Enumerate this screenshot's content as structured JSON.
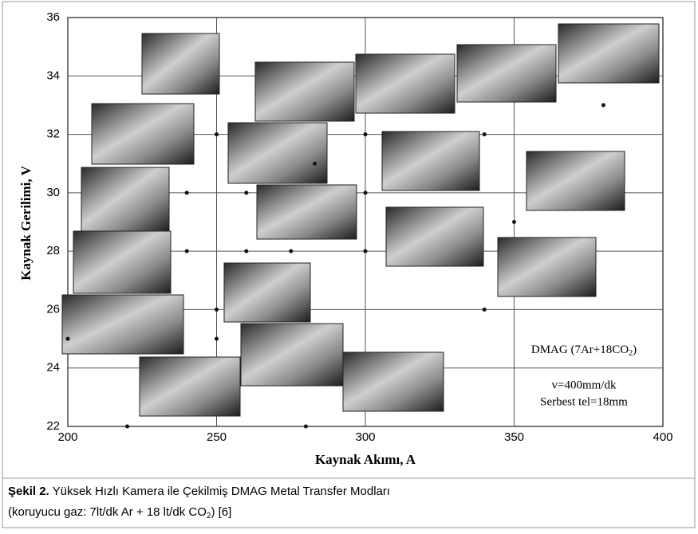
{
  "chart_data": {
    "type": "scatter",
    "xlabel": "Kaynak Akımı, A",
    "ylabel": "Kaynak Gerilimi, V",
    "xlim": [
      200,
      400
    ],
    "ylim": [
      22,
      36
    ],
    "xticks": [
      200,
      250,
      300,
      350,
      400
    ],
    "yticks": [
      22,
      24,
      26,
      28,
      30,
      32,
      34,
      36
    ],
    "grid": true,
    "series": [
      {
        "color": "#111111",
        "x": [
          250,
          240,
          240,
          250,
          200,
          250,
          220,
          260,
          260,
          283,
          275,
          300,
          300,
          300,
          280,
          340,
          350,
          340,
          380
        ],
        "values": [
          32,
          30,
          28,
          26,
          25,
          25,
          22,
          30,
          28,
          31,
          28,
          32,
          30,
          28,
          22,
          32,
          29,
          26,
          33
        ]
      }
    ],
    "annotations": {
      "legend_a": "DMAG (7Ar+18CO",
      "legend_sub": "2",
      "legend_b": ")",
      "speed": "v=400mm/dk",
      "wire": "Serbest tel=18mm"
    }
  },
  "caption": {
    "label": "Şekil 2.",
    "text": "Yüksek Hızlı Kamera ile Çekilmiş DMAG Metal Transfer Modları",
    "line2_a": "(koruyucu gaz: 7lt/dk Ar + 18 lt/dk CO",
    "line2_sub": "2",
    "line2_b": ") [6]"
  }
}
